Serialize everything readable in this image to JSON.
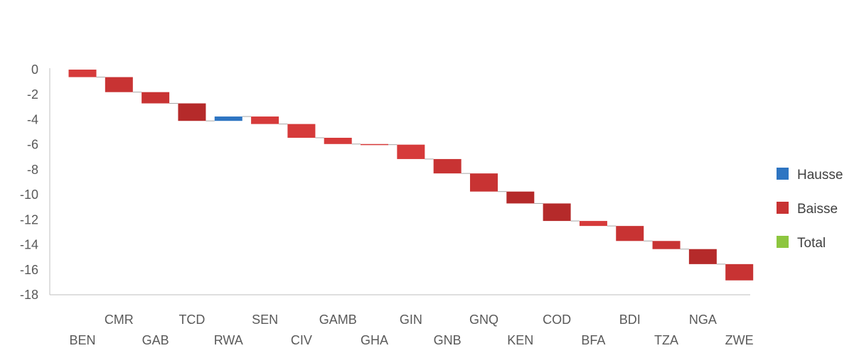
{
  "chart_data": {
    "type": "bar",
    "subtype": "waterfall",
    "title": "",
    "xlabel": "",
    "ylabel": "",
    "ylim": [
      -18,
      0
    ],
    "yticks": [
      0,
      -2,
      -4,
      -6,
      -8,
      -10,
      -12,
      -14,
      -16,
      -18
    ],
    "categories": [
      "BEN",
      "CMR",
      "GAB",
      "TCD",
      "RWA",
      "SEN",
      "CIV",
      "GAMB",
      "GHA",
      "GIN",
      "GNB",
      "GNQ",
      "KEN",
      "COD",
      "BFA",
      "BDI",
      "TZA",
      "NGA",
      "ZWE"
    ],
    "changes": [
      -0.6,
      -1.2,
      -0.9,
      -1.4,
      0.35,
      -0.6,
      -1.1,
      -0.5,
      -0.05,
      -1.15,
      -1.15,
      -1.45,
      -0.95,
      -1.4,
      -0.4,
      -1.2,
      -0.65,
      -1.2,
      -1.3
    ],
    "bar_colors": [
      "#d63a3a",
      "#c83333",
      "#c83333",
      "#b52a2a",
      "#2e75c2",
      "#d63a3a",
      "#d63a3a",
      "#d63a3a",
      "#d63a3a",
      "#d63a3a",
      "#c83333",
      "#c83333",
      "#b52a2a",
      "#b52a2a",
      "#d63a3a",
      "#c83333",
      "#c83333",
      "#b52a2a",
      "#c83333"
    ],
    "grid": false,
    "legend_position": "right",
    "legend": [
      {
        "name": "Hausse",
        "color": "#2e75c2"
      },
      {
        "name": "Baisse",
        "color": "#c83333"
      },
      {
        "name": "Total",
        "color": "#8dc63f"
      }
    ]
  }
}
